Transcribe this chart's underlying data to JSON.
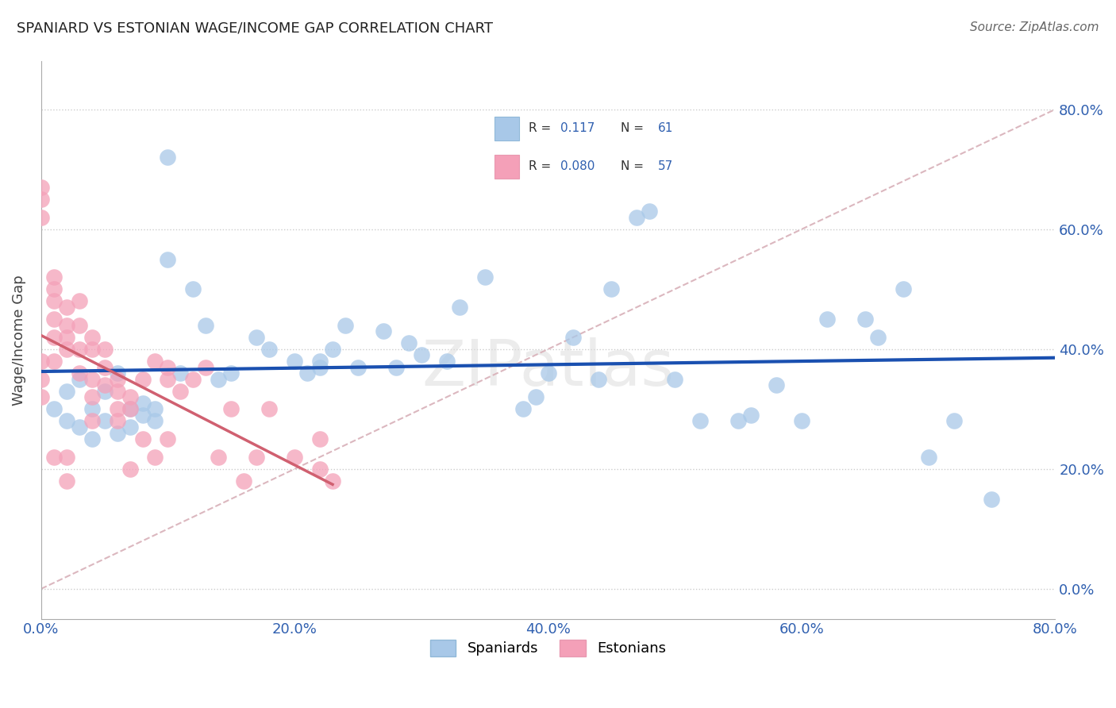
{
  "title": "SPANIARD VS ESTONIAN WAGE/INCOME GAP CORRELATION CHART",
  "source_text": "Source: ZipAtlas.com",
  "ylabel": "Wage/Income Gap",
  "xlim": [
    0.0,
    0.8
  ],
  "ylim": [
    -0.05,
    0.88
  ],
  "xtick_vals": [
    0.0,
    0.2,
    0.4,
    0.6,
    0.8
  ],
  "ytick_vals": [
    0.0,
    0.2,
    0.4,
    0.6,
    0.8
  ],
  "spaniard_color": "#a8c8e8",
  "estonian_color": "#f4a0b8",
  "spaniard_line_color": "#1a50b0",
  "estonian_line_color": "#d06070",
  "diagonal_color": "#d8b0b8",
  "grid_color": "#cccccc",
  "watermark_text": "ZIPatlas",
  "spaniard_x": [
    0.01,
    0.02,
    0.02,
    0.03,
    0.03,
    0.04,
    0.04,
    0.05,
    0.05,
    0.06,
    0.06,
    0.07,
    0.07,
    0.08,
    0.08,
    0.09,
    0.09,
    0.1,
    0.1,
    0.11,
    0.12,
    0.13,
    0.14,
    0.15,
    0.17,
    0.18,
    0.2,
    0.21,
    0.22,
    0.22,
    0.23,
    0.24,
    0.25,
    0.27,
    0.28,
    0.29,
    0.3,
    0.32,
    0.33,
    0.35,
    0.38,
    0.39,
    0.4,
    0.42,
    0.44,
    0.45,
    0.47,
    0.48,
    0.5,
    0.52,
    0.55,
    0.56,
    0.58,
    0.6,
    0.62,
    0.65,
    0.66,
    0.68,
    0.7,
    0.72,
    0.75
  ],
  "spaniard_y": [
    0.3,
    0.33,
    0.28,
    0.35,
    0.27,
    0.3,
    0.25,
    0.33,
    0.28,
    0.36,
    0.26,
    0.3,
    0.27,
    0.29,
    0.31,
    0.28,
    0.3,
    0.72,
    0.55,
    0.36,
    0.5,
    0.44,
    0.35,
    0.36,
    0.42,
    0.4,
    0.38,
    0.36,
    0.37,
    0.38,
    0.4,
    0.44,
    0.37,
    0.43,
    0.37,
    0.41,
    0.39,
    0.38,
    0.47,
    0.52,
    0.3,
    0.32,
    0.36,
    0.42,
    0.35,
    0.5,
    0.62,
    0.63,
    0.35,
    0.28,
    0.28,
    0.29,
    0.34,
    0.28,
    0.45,
    0.45,
    0.42,
    0.5,
    0.22,
    0.28,
    0.15
  ],
  "estonian_x": [
    0.0,
    0.0,
    0.0,
    0.0,
    0.0,
    0.0,
    0.01,
    0.01,
    0.01,
    0.01,
    0.01,
    0.01,
    0.01,
    0.02,
    0.02,
    0.02,
    0.02,
    0.02,
    0.02,
    0.03,
    0.03,
    0.03,
    0.03,
    0.04,
    0.04,
    0.04,
    0.04,
    0.04,
    0.05,
    0.05,
    0.05,
    0.06,
    0.06,
    0.06,
    0.06,
    0.07,
    0.07,
    0.07,
    0.08,
    0.08,
    0.09,
    0.09,
    0.1,
    0.1,
    0.1,
    0.11,
    0.12,
    0.13,
    0.14,
    0.15,
    0.16,
    0.17,
    0.18,
    0.2,
    0.22,
    0.22,
    0.23
  ],
  "estonian_y": [
    0.67,
    0.65,
    0.62,
    0.38,
    0.35,
    0.32,
    0.52,
    0.5,
    0.48,
    0.45,
    0.42,
    0.38,
    0.22,
    0.47,
    0.44,
    0.42,
    0.4,
    0.22,
    0.18,
    0.48,
    0.44,
    0.4,
    0.36,
    0.42,
    0.4,
    0.35,
    0.32,
    0.28,
    0.4,
    0.37,
    0.34,
    0.35,
    0.33,
    0.3,
    0.28,
    0.32,
    0.3,
    0.2,
    0.35,
    0.25,
    0.38,
    0.22,
    0.37,
    0.35,
    0.25,
    0.33,
    0.35,
    0.37,
    0.22,
    0.3,
    0.18,
    0.22,
    0.3,
    0.22,
    0.25,
    0.2,
    0.18
  ],
  "background_color": "#ffffff",
  "tick_color": "#3060b0",
  "legend_text_color": "#333333",
  "legend_val_color": "#3060b0"
}
